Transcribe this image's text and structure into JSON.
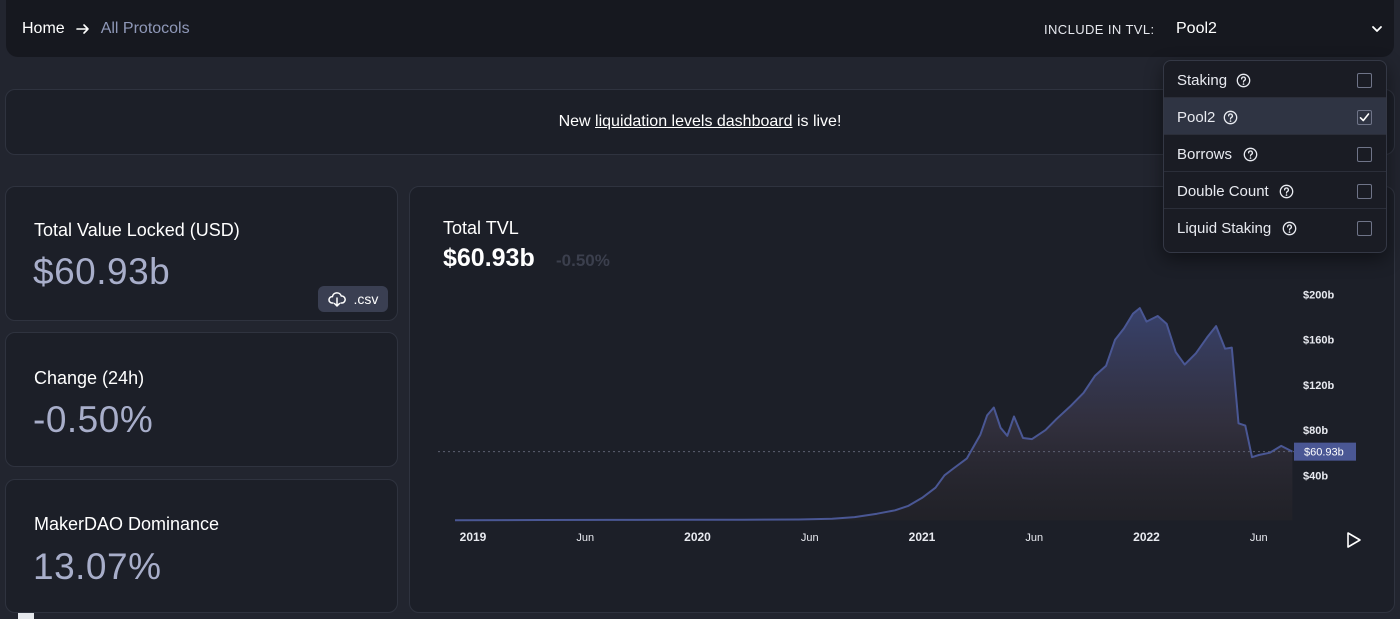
{
  "breadcrumb": {
    "home": "Home",
    "current": "All Protocols"
  },
  "tvl_filter": {
    "label": "INCLUDE IN TVL:",
    "selected": "Pool2",
    "options": [
      {
        "label": "Staking",
        "checked": false
      },
      {
        "label": "Pool2",
        "checked": true
      },
      {
        "label": "Borrows",
        "checked": false
      },
      {
        "label": "Double Count",
        "checked": false
      },
      {
        "label": "Liquid Staking",
        "checked": false
      }
    ]
  },
  "banner": {
    "prefix": "New ",
    "link": "liquidation levels dashboard",
    "suffix": " is live!"
  },
  "stats": {
    "tvl": {
      "label": "Total Value Locked (USD)",
      "value": "$60.93b"
    },
    "change": {
      "label": "Change (24h)",
      "value": "-0.50%"
    },
    "dominance": {
      "label": "MakerDAO Dominance",
      "value": "13.07%"
    },
    "csv_label": ".csv"
  },
  "chart": {
    "title": "Total TVL",
    "value": "$60.93b",
    "change": "-0.50%",
    "current_label": "$60.93b"
  },
  "colors": {
    "line": "#4a5794",
    "card": "#1c1f28",
    "accent_value": "#a8aeca"
  },
  "chart_data": {
    "type": "area",
    "ylim": [
      0,
      210
    ],
    "y_unit": "billions USD",
    "y_ticks": [
      {
        "value": 40,
        "label": "$40b"
      },
      {
        "value": 80,
        "label": "$80b"
      },
      {
        "value": 120,
        "label": "$120b"
      },
      {
        "value": 160,
        "label": "$160b"
      },
      {
        "value": 200,
        "label": "$200b"
      }
    ],
    "x_ticks": [
      {
        "t": 0.0,
        "label": "2019",
        "bold": true
      },
      {
        "t": 0.5,
        "label": "Jun",
        "bold": false
      },
      {
        "t": 1.0,
        "label": "2020",
        "bold": true
      },
      {
        "t": 1.5,
        "label": "Jun",
        "bold": false
      },
      {
        "t": 2.0,
        "label": "2021",
        "bold": true
      },
      {
        "t": 2.5,
        "label": "Jun",
        "bold": false
      },
      {
        "t": 3.0,
        "label": "2022",
        "bold": true
      },
      {
        "t": 3.5,
        "label": "Jun",
        "bold": false
      }
    ],
    "current_value": 60.93,
    "series": [
      {
        "values": [
          [
            -0.08,
            0.3
          ],
          [
            0.3,
            0.4
          ],
          [
            0.6,
            0.5
          ],
          [
            0.9,
            0.6
          ],
          [
            1.2,
            0.7
          ],
          [
            1.45,
            0.9
          ],
          [
            1.6,
            1.5
          ],
          [
            1.7,
            3
          ],
          [
            1.8,
            6
          ],
          [
            1.88,
            9
          ],
          [
            1.94,
            13
          ],
          [
            2.0,
            20
          ],
          [
            2.06,
            29
          ],
          [
            2.1,
            40
          ],
          [
            2.14,
            46
          ],
          [
            2.2,
            55
          ],
          [
            2.26,
            76
          ],
          [
            2.29,
            93
          ],
          [
            2.32,
            100
          ],
          [
            2.35,
            82
          ],
          [
            2.38,
            75
          ],
          [
            2.41,
            92
          ],
          [
            2.45,
            73
          ],
          [
            2.49,
            72
          ],
          [
            2.55,
            80
          ],
          [
            2.6,
            90
          ],
          [
            2.66,
            101
          ],
          [
            2.72,
            113
          ],
          [
            2.77,
            128
          ],
          [
            2.82,
            137
          ],
          [
            2.86,
            160
          ],
          [
            2.9,
            170
          ],
          [
            2.94,
            183
          ],
          [
            2.97,
            188
          ],
          [
            3.0,
            176
          ],
          [
            3.05,
            181
          ],
          [
            3.09,
            174
          ],
          [
            3.13,
            149
          ],
          [
            3.17,
            138
          ],
          [
            3.22,
            148
          ],
          [
            3.27,
            162
          ],
          [
            3.31,
            172
          ],
          [
            3.35,
            152
          ],
          [
            3.38,
            153
          ],
          [
            3.41,
            86
          ],
          [
            3.44,
            84
          ],
          [
            3.47,
            56
          ],
          [
            3.5,
            58
          ],
          [
            3.55,
            60
          ],
          [
            3.6,
            66
          ],
          [
            3.65,
            60.93
          ]
        ]
      }
    ]
  }
}
